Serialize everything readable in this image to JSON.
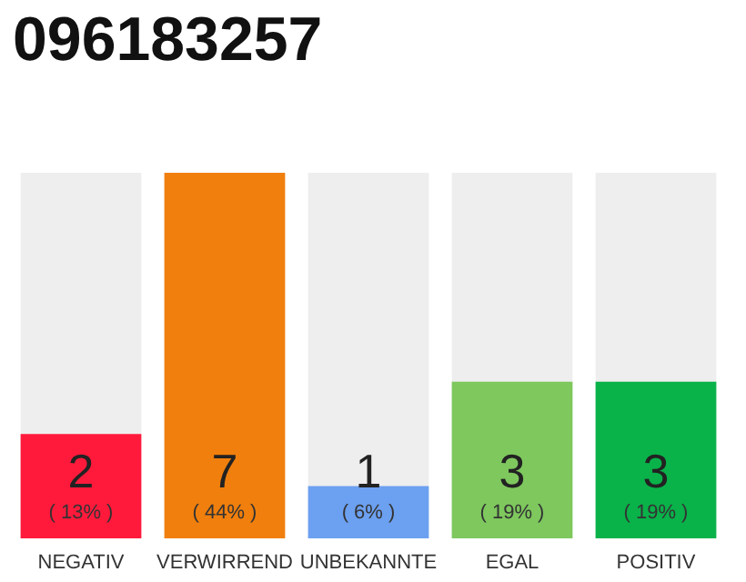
{
  "chart_data": {
    "type": "bar",
    "title": "096183257",
    "categories": [
      "NEGATIV",
      "VERWIRREND",
      "UNBEKANNTE",
      "EGAL",
      "POSITIV"
    ],
    "values": [
      2,
      7,
      1,
      3,
      3
    ],
    "colors": [
      "#ff1a3c",
      "#f07f0d",
      "#6ca0f0",
      "#7ec85e",
      "#0ab24a"
    ],
    "value_labels": [
      "2\n( 13% )",
      "7\n( 44% )",
      "1\n( 6% )",
      "3\n( 19% )",
      "3\n( 19% )"
    ],
    "tick_labels": "x",
    "grid": false
  }
}
